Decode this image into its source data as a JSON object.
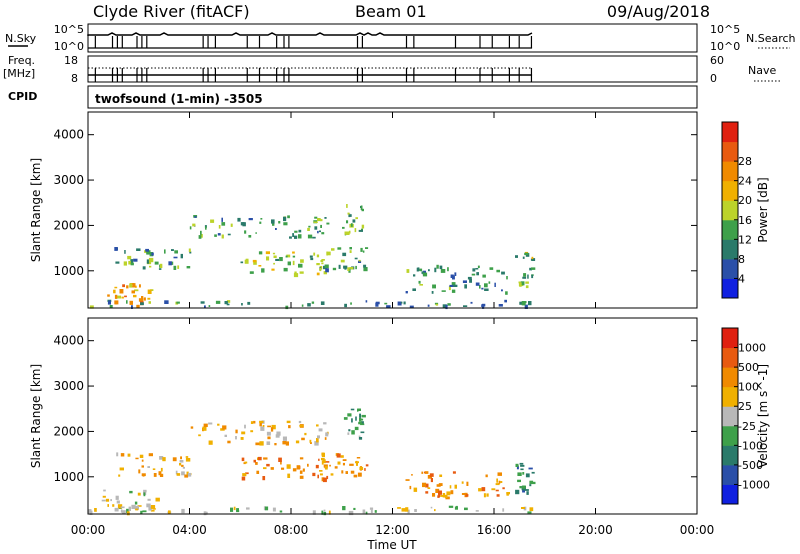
{
  "header": {
    "station": "Clyde River (fitACF)",
    "beam": "Beam 01",
    "date": "09/Aug/2018"
  },
  "param_panels": {
    "nsky_label": "N.Sky",
    "nsky_ticks": [
      "10^5",
      "10^0"
    ],
    "nsky_right_ticks": [
      "10^5",
      "10^0"
    ],
    "nsearch_label": "N.Search",
    "freq_label": "Freq.",
    "freq_unit": "[MHz]",
    "freq_ticks": [
      "18",
      "8"
    ],
    "nave_ticks": [
      "60",
      "0"
    ],
    "nave_label": "Nave",
    "cpid_label": "CPID",
    "cpid_value": "twofsound (1-min) -3505"
  },
  "chart_data": [
    {
      "type": "heatmap",
      "panel": "power",
      "ylabel": "Slant Range [km]",
      "xlabel": "",
      "x_ticks": [
        "00:00",
        "04:00",
        "08:00",
        "12:00",
        "16:00",
        "20:00",
        "00:00"
      ],
      "xlim": [
        0,
        24
      ],
      "ylim": [
        180,
        4500
      ],
      "y_ticks": [
        "1000",
        "2000",
        "3000",
        "4000"
      ],
      "colorbar": {
        "label": "Power [dB]",
        "ticks": [
          "4",
          "8",
          "12",
          "16",
          "20",
          "24",
          "28"
        ],
        "range": [
          0,
          30
        ],
        "colors": [
          "#1020e0",
          "#2a4fa8",
          "#2a7a6a",
          "#3ea04a",
          "#bcd32a",
          "#f0b000",
          "#f08a00",
          "#e85a10",
          "#e02010"
        ]
      },
      "echo_regions": [
        {
          "t0": 0.5,
          "t1": 2.8,
          "r0": 200,
          "r1": 700,
          "level": 20
        },
        {
          "t0": 0.0,
          "t1": 17.5,
          "r0": 180,
          "r1": 320,
          "level": 8
        },
        {
          "t0": 1.0,
          "t1": 4.0,
          "r0": 1000,
          "r1": 1500,
          "level": 10
        },
        {
          "t0": 4.0,
          "t1": 9.5,
          "r0": 1700,
          "r1": 2200,
          "level": 10
        },
        {
          "t0": 6.0,
          "t1": 9.5,
          "r0": 900,
          "r1": 1400,
          "level": 14
        },
        {
          "t0": 9.0,
          "t1": 11.0,
          "r0": 1000,
          "r1": 1500,
          "level": 10
        },
        {
          "t0": 10.0,
          "t1": 10.8,
          "r0": 1800,
          "r1": 2500,
          "level": 10
        },
        {
          "t0": 12.5,
          "t1": 16.5,
          "r0": 500,
          "r1": 1100,
          "level": 8
        },
        {
          "t0": 16.8,
          "t1": 17.5,
          "r0": 600,
          "r1": 1400,
          "level": 12
        }
      ]
    },
    {
      "type": "heatmap",
      "panel": "velocity",
      "ylabel": "Slant Range [km]",
      "xlabel": "Time UT",
      "x_ticks": [
        "00:00",
        "04:00",
        "08:00",
        "12:00",
        "16:00",
        "20:00",
        "00:00"
      ],
      "xlim": [
        0,
        24
      ],
      "ylim": [
        180,
        4500
      ],
      "y_ticks": [
        "1000",
        "2000",
        "3000",
        "4000"
      ],
      "colorbar": {
        "label": "Velocity [m s^-1]",
        "ticks": [
          "1000",
          "500",
          "100",
          "25",
          "-25",
          "-100",
          "-500",
          "-1000"
        ],
        "colors": [
          "#1020e0",
          "#2a4fa8",
          "#2a7a6a",
          "#3ea04a",
          "#b8b8b8",
          "#f0b000",
          "#f08a00",
          "#e85a10",
          "#e02010"
        ]
      },
      "echo_regions": [
        {
          "t0": 0.5,
          "t1": 2.8,
          "r0": 200,
          "r1": 700,
          "level": 4
        },
        {
          "t0": 0.0,
          "t1": 17.5,
          "r0": 180,
          "r1": 320,
          "level": 4
        },
        {
          "t0": 1.0,
          "t1": 4.0,
          "r0": 1000,
          "r1": 1500,
          "level": 5
        },
        {
          "t0": 4.0,
          "t1": 9.5,
          "r0": 1700,
          "r1": 2200,
          "level": 5
        },
        {
          "t0": 6.0,
          "t1": 9.5,
          "r0": 900,
          "r1": 1400,
          "level": 6
        },
        {
          "t0": 9.0,
          "t1": 11.0,
          "r0": 1000,
          "r1": 1500,
          "level": 6
        },
        {
          "t0": 10.0,
          "t1": 10.8,
          "r0": 1800,
          "r1": 2500,
          "level": 3
        },
        {
          "t0": 12.5,
          "t1": 16.5,
          "r0": 500,
          "r1": 1100,
          "level": 6
        },
        {
          "t0": 16.8,
          "t1": 17.5,
          "r0": 600,
          "r1": 1400,
          "level": 2
        }
      ]
    }
  ]
}
